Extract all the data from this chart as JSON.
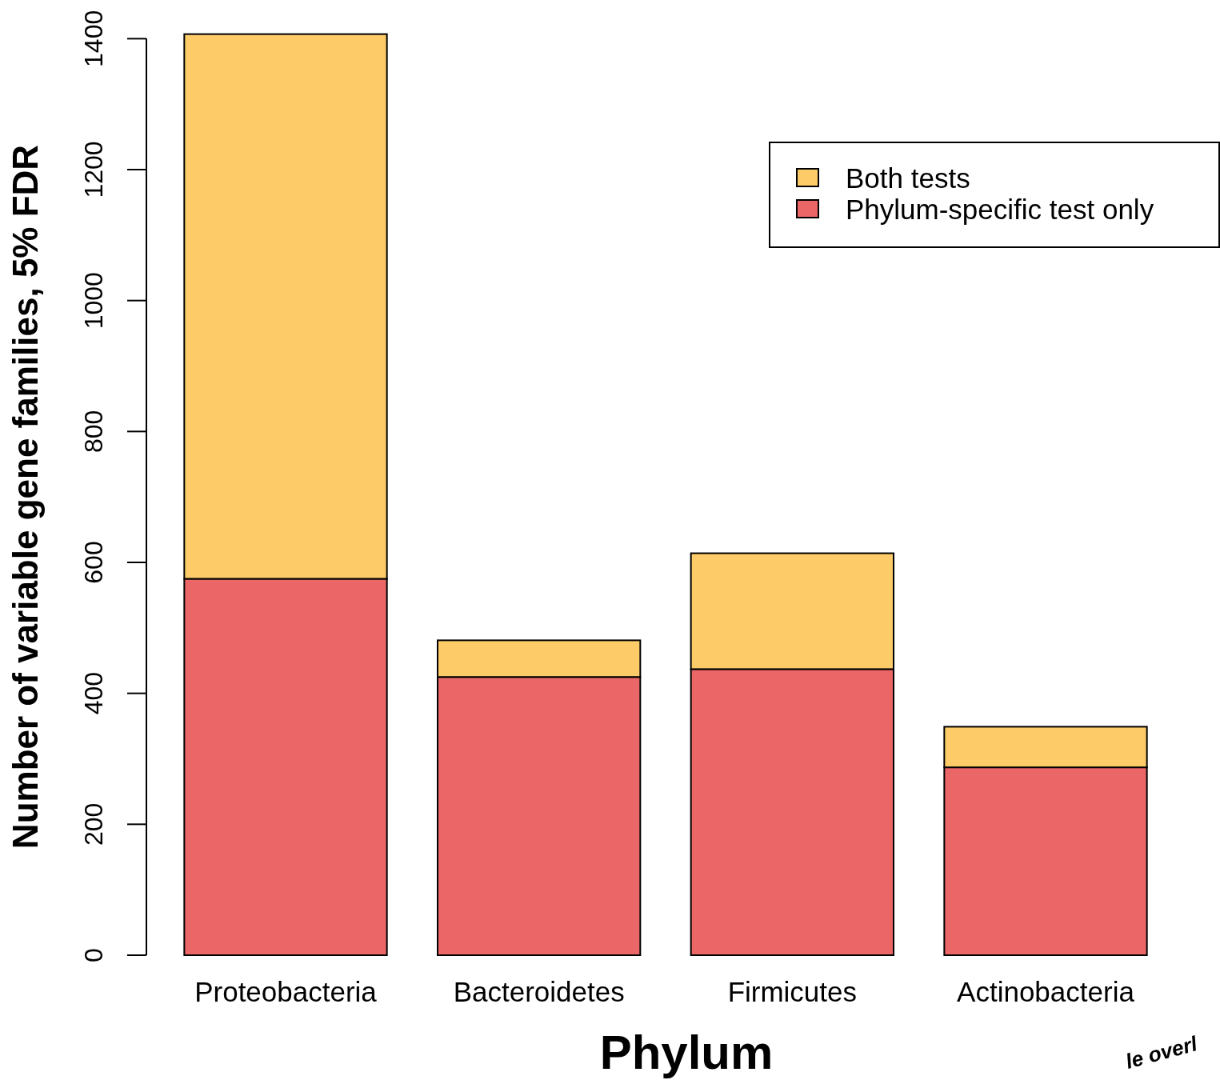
{
  "chart_data": {
    "type": "bar",
    "stacked": true,
    "xlabel": "Phylum",
    "ylabel": "Number of variable gene families, 5% FDR",
    "categories": [
      "Proteobacteria",
      "Bacteroidetes",
      "Firmicutes",
      "Actinobacteria"
    ],
    "series": [
      {
        "name": "Phylum-specific test only",
        "color": "#eb6767",
        "values": [
          575,
          425,
          437,
          287
        ]
      },
      {
        "name": "Both tests",
        "color": "#fecb69",
        "values": [
          832,
          56,
          177,
          62
        ]
      }
    ],
    "ylim": [
      0,
      1420
    ],
    "yticks": [
      0,
      200,
      400,
      600,
      800,
      1000,
      1200,
      1400
    ],
    "legend": "top right",
    "grid": false,
    "annotations": [
      "le overl"
    ]
  }
}
